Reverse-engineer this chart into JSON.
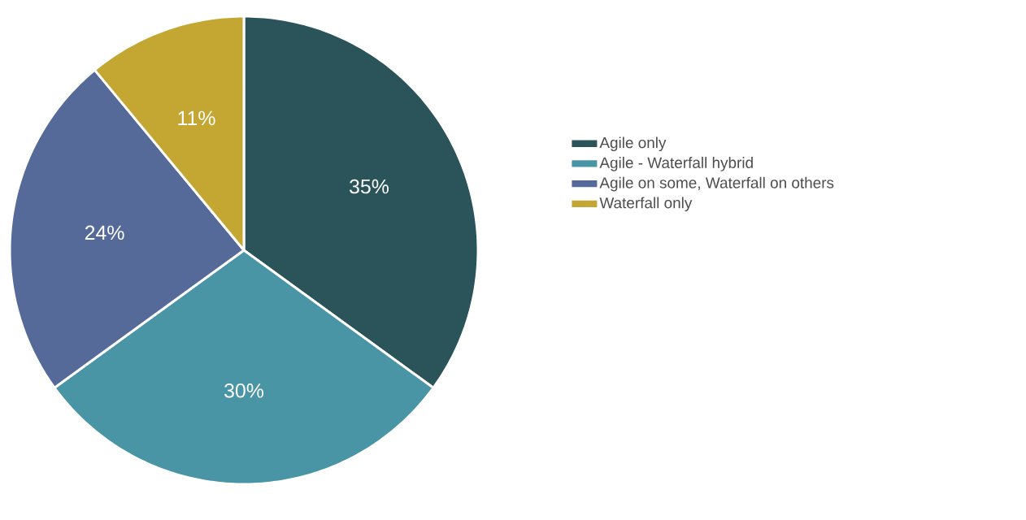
{
  "chart_data": {
    "type": "pie",
    "categories": [
      "Agile only",
      "Agile - Waterfall hybrid",
      "Agile on some, Waterfall on others",
      "Waterfall only"
    ],
    "values": [
      35,
      30,
      24,
      11
    ],
    "colors": [
      "#2a5459",
      "#4a95a5",
      "#566a9a",
      "#c4a733"
    ],
    "value_labels": [
      "35%",
      "30%",
      "24%",
      "11%"
    ],
    "legend": "right"
  }
}
